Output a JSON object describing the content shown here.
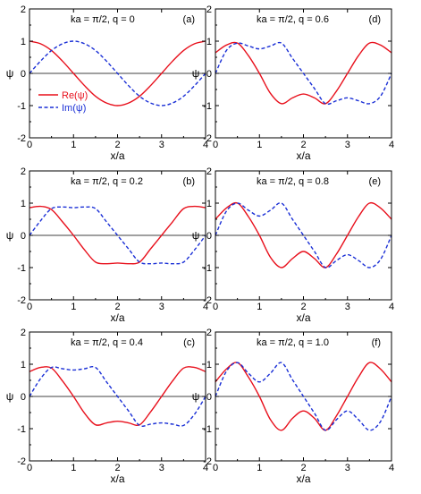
{
  "colors": {
    "re": "#e8101c",
    "im": "#1a2fd6",
    "axis": "#000000"
  },
  "legend": {
    "re_label": "Re(ψ)",
    "im_label": "Im(ψ)",
    "placement": "left, inside panel (a)"
  },
  "chart_data": [
    {
      "type": "line",
      "panel_label": "(a)",
      "title": "ka = π/2,  q = 0",
      "xlabel": "x/a",
      "ylabel": "ψ",
      "xlim": [
        0,
        4
      ],
      "ylim": [
        -2,
        2
      ],
      "xticks": [
        "0",
        "1",
        "2",
        "3",
        "4"
      ],
      "yticks": [
        "2",
        "1",
        "0",
        "-1",
        "-2"
      ],
      "x": [
        0,
        0.25,
        0.5,
        0.75,
        1.0,
        1.25,
        1.5,
        1.75,
        2.0,
        2.25,
        2.5,
        2.75,
        3.0,
        3.25,
        3.5,
        3.75,
        4.0
      ],
      "series": [
        {
          "name": "Re(ψ)",
          "values": [
            1.0,
            0.92,
            0.71,
            0.38,
            0.0,
            -0.38,
            -0.71,
            -0.92,
            -1.0,
            -0.92,
            -0.71,
            -0.38,
            0.0,
            0.38,
            0.71,
            0.92,
            1.0
          ]
        },
        {
          "name": "Im(ψ)",
          "values": [
            0.0,
            0.38,
            0.71,
            0.92,
            1.0,
            0.92,
            0.71,
            0.38,
            0.0,
            -0.38,
            -0.71,
            -0.92,
            -1.0,
            -0.92,
            -0.71,
            -0.38,
            0.0
          ]
        }
      ]
    },
    {
      "type": "line",
      "panel_label": "(d)",
      "title": "ka = π/2,  q = 0.6",
      "xlabel": "x/a",
      "ylabel": "ψ",
      "xlim": [
        0,
        4
      ],
      "ylim": [
        -2,
        2
      ],
      "xticks": [
        "0",
        "1",
        "2",
        "3",
        "4"
      ],
      "yticks": [
        "2",
        "1",
        "0",
        "-1",
        "-2"
      ],
      "x": [
        0,
        0.25,
        0.5,
        0.75,
        1.0,
        1.25,
        1.5,
        1.75,
        2.0,
        2.25,
        2.5,
        2.75,
        3.0,
        3.25,
        3.5,
        3.75,
        4.0
      ],
      "series": [
        {
          "name": "Re(ψ)",
          "values": [
            0.64,
            0.88,
            0.94,
            0.55,
            0.0,
            -0.62,
            -0.94,
            -0.76,
            -0.64,
            -0.76,
            -0.94,
            -0.55,
            0.0,
            0.55,
            0.94,
            0.88,
            0.64
          ]
        },
        {
          "name": "Im(ψ)",
          "values": [
            0.0,
            0.71,
            0.94,
            0.85,
            0.76,
            0.85,
            0.94,
            0.47,
            0.0,
            -0.47,
            -0.94,
            -0.85,
            -0.76,
            -0.85,
            -0.94,
            -0.71,
            0.0
          ]
        }
      ]
    },
    {
      "type": "line",
      "panel_label": "(b)",
      "title": "ka = π/2,  q = 0.2",
      "xlabel": "x/a",
      "ylabel": "ψ",
      "xlim": [
        0,
        4
      ],
      "ylim": [
        -2,
        2
      ],
      "xticks": [
        "0",
        "1",
        "2",
        "3",
        "4"
      ],
      "yticks": [
        "2",
        "1",
        "0",
        "-1",
        "-2"
      ],
      "x": [
        0,
        0.25,
        0.5,
        0.75,
        1.0,
        1.25,
        1.5,
        1.75,
        2.0,
        2.25,
        2.5,
        2.75,
        3.0,
        3.25,
        3.5,
        3.75,
        4.0
      ],
      "series": [
        {
          "name": "Re(ψ)",
          "values": [
            0.86,
            0.9,
            0.8,
            0.42,
            0.0,
            -0.45,
            -0.83,
            -0.88,
            -0.86,
            -0.88,
            -0.83,
            -0.42,
            0.0,
            0.42,
            0.83,
            0.9,
            0.86
          ]
        },
        {
          "name": "Im(ψ)",
          "values": [
            0.0,
            0.45,
            0.83,
            0.88,
            0.86,
            0.88,
            0.83,
            0.42,
            0.0,
            -0.42,
            -0.83,
            -0.88,
            -0.86,
            -0.88,
            -0.83,
            -0.45,
            0.0
          ]
        }
      ]
    },
    {
      "type": "line",
      "panel_label": "(e)",
      "title": "ka = π/2,  q = 0.8",
      "xlabel": "x/a",
      "ylabel": "ψ",
      "xlim": [
        0,
        4
      ],
      "ylim": [
        -2,
        2
      ],
      "xticks": [
        "0",
        "1",
        "2",
        "3",
        "4"
      ],
      "yticks": [
        "2",
        "1",
        "0",
        "-1",
        "-2"
      ],
      "x": [
        0,
        0.25,
        0.5,
        0.75,
        1.0,
        1.25,
        1.5,
        1.75,
        2.0,
        2.25,
        2.5,
        2.75,
        3.0,
        3.25,
        3.5,
        3.75,
        4.0
      ],
      "series": [
        {
          "name": "Re(ψ)",
          "values": [
            0.5,
            0.85,
            1.0,
            0.58,
            0.0,
            -0.68,
            -1.0,
            -0.72,
            -0.5,
            -0.72,
            -1.0,
            -0.58,
            0.0,
            0.58,
            1.0,
            0.85,
            0.5
          ]
        },
        {
          "name": "Im(ψ)",
          "values": [
            0.0,
            0.75,
            1.0,
            0.78,
            0.6,
            0.78,
            1.0,
            0.5,
            0.0,
            -0.5,
            -1.0,
            -0.78,
            -0.6,
            -0.78,
            -1.0,
            -0.75,
            0.0
          ]
        }
      ]
    },
    {
      "type": "line",
      "panel_label": "(c)",
      "title": "ka = π/2,  q = 0.4",
      "xlabel": "x/a",
      "ylabel": "ψ",
      "xlim": [
        0,
        4
      ],
      "ylim": [
        -2,
        2
      ],
      "xticks": [
        "0",
        "1",
        "2",
        "3",
        "4"
      ],
      "yticks": [
        "2",
        "1",
        "0",
        "-1",
        "-2"
      ],
      "x": [
        0,
        0.25,
        0.5,
        0.75,
        1.0,
        1.25,
        1.5,
        1.75,
        2.0,
        2.25,
        2.5,
        2.75,
        3.0,
        3.25,
        3.5,
        3.75,
        4.0
      ],
      "series": [
        {
          "name": "Re(ψ)",
          "values": [
            0.77,
            0.9,
            0.88,
            0.48,
            0.0,
            -0.52,
            -0.88,
            -0.82,
            -0.77,
            -0.82,
            -0.88,
            -0.48,
            0.0,
            0.48,
            0.88,
            0.9,
            0.77
          ]
        },
        {
          "name": "Im(ψ)",
          "values": [
            0.0,
            0.55,
            0.9,
            0.86,
            0.82,
            0.86,
            0.9,
            0.45,
            0.0,
            -0.45,
            -0.9,
            -0.86,
            -0.82,
            -0.86,
            -0.9,
            -0.55,
            0.0
          ]
        }
      ]
    },
    {
      "type": "line",
      "panel_label": "(f)",
      "title": "ka = π/2,  q = 1.0",
      "xlabel": "x/a",
      "ylabel": "ψ",
      "xlim": [
        0,
        4
      ],
      "ylim": [
        -2,
        2
      ],
      "xticks": [
        "0",
        "1",
        "2",
        "3",
        "4"
      ],
      "yticks": [
        "2",
        "1",
        "0",
        "-1",
        "-2"
      ],
      "x": [
        0,
        0.25,
        0.5,
        0.75,
        1.0,
        1.25,
        1.5,
        1.75,
        2.0,
        2.25,
        2.5,
        2.75,
        3.0,
        3.25,
        3.5,
        3.75,
        4.0
      ],
      "series": [
        {
          "name": "Re(ψ)",
          "values": [
            0.45,
            0.85,
            1.05,
            0.6,
            0.0,
            -0.72,
            -1.05,
            -0.68,
            -0.45,
            -0.68,
            -1.05,
            -0.6,
            0.0,
            0.6,
            1.05,
            0.85,
            0.45
          ]
        },
        {
          "name": "Im(ψ)",
          "values": [
            0.0,
            0.78,
            1.05,
            0.72,
            0.45,
            0.72,
            1.05,
            0.52,
            0.0,
            -0.52,
            -1.05,
            -0.72,
            -0.45,
            -0.72,
            -1.05,
            -0.78,
            0.0
          ]
        }
      ]
    }
  ]
}
